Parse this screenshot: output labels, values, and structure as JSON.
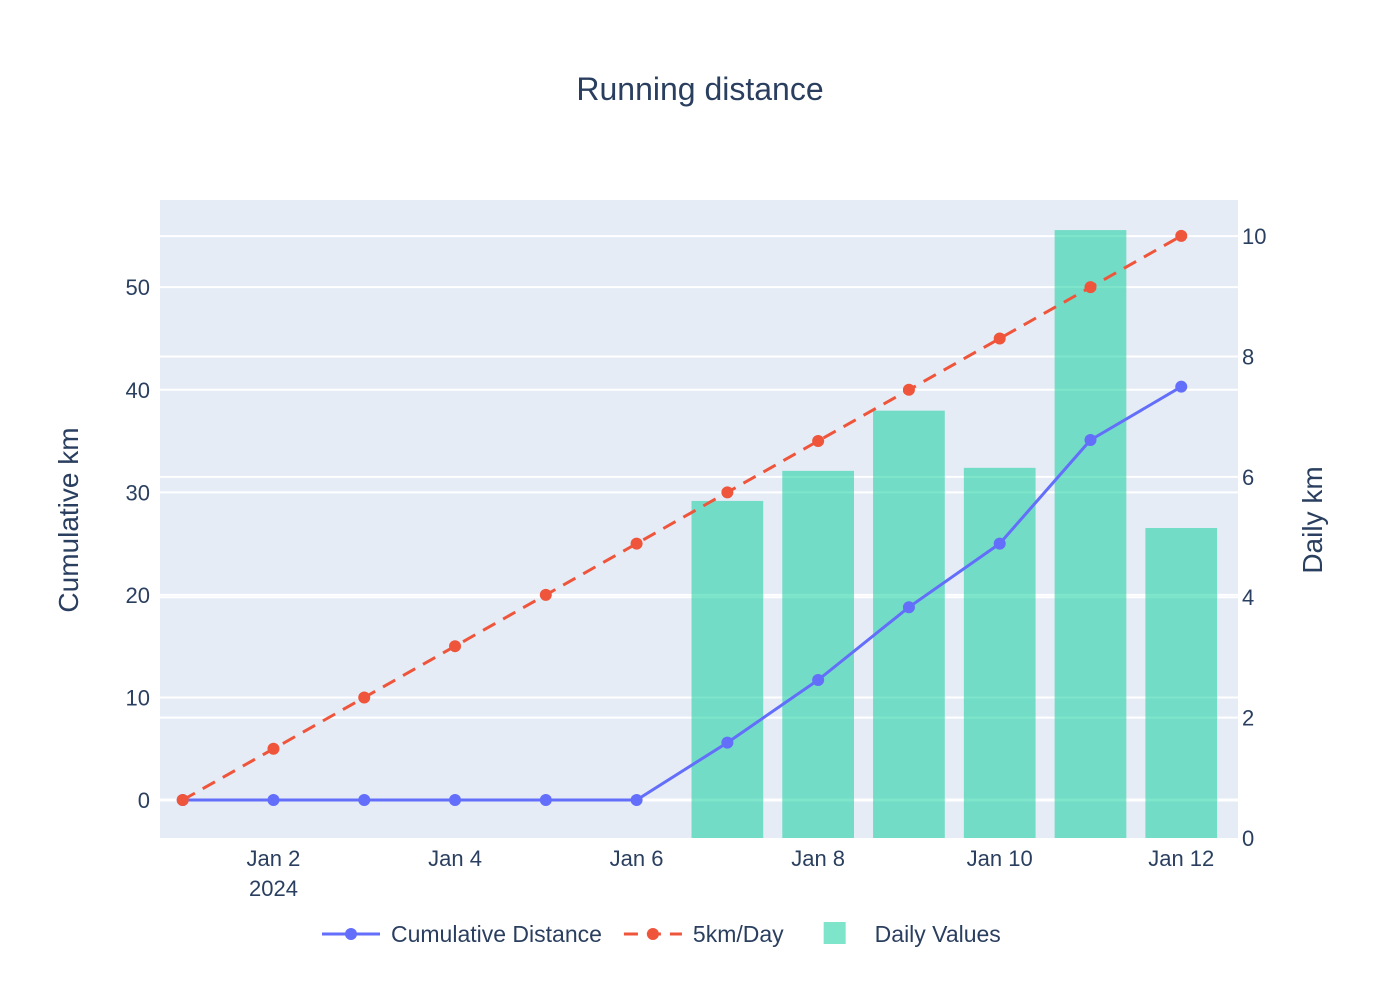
{
  "chart_data": {
    "type": "line",
    "title": "Running distance",
    "x": [
      "2024-01-01",
      "2024-01-02",
      "2024-01-03",
      "2024-01-04",
      "2024-01-05",
      "2024-01-06",
      "2024-01-07",
      "2024-01-08",
      "2024-01-09",
      "2024-01-10",
      "2024-01-11",
      "2024-01-12"
    ],
    "x_tick_labels": [
      {
        "date": "2024-01-02",
        "label": "Jan 2",
        "sublabel": "2024"
      },
      {
        "date": "2024-01-04",
        "label": "Jan 4",
        "sublabel": ""
      },
      {
        "date": "2024-01-06",
        "label": "Jan 6",
        "sublabel": ""
      },
      {
        "date": "2024-01-08",
        "label": "Jan 8",
        "sublabel": ""
      },
      {
        "date": "2024-01-10",
        "label": "Jan 10",
        "sublabel": ""
      },
      {
        "date": "2024-01-12",
        "label": "Jan 12",
        "sublabel": ""
      }
    ],
    "xlim": [
      "2023-12-31T18:00",
      "2024-01-12T15:00"
    ],
    "y_left": {
      "label": "Cumulative km",
      "ylim": [
        -3.7,
        58.5
      ],
      "ticks": [
        0,
        10,
        20,
        30,
        40,
        50
      ]
    },
    "y_right": {
      "label": "Daily km",
      "ylim": [
        0,
        10.6
      ],
      "ticks": [
        0,
        2,
        4,
        6,
        8,
        10
      ]
    },
    "series": [
      {
        "name": "Cumulative Distance",
        "type": "line",
        "axis": "left",
        "color": "#636efa",
        "dash": "solid",
        "values": [
          0,
          0,
          0,
          0,
          0,
          0,
          5.6,
          11.7,
          18.8,
          25.0,
          35.1,
          40.3
        ]
      },
      {
        "name": "5km/Day",
        "type": "line",
        "axis": "left",
        "color": "#ef553b",
        "dash": "dash",
        "values": [
          0,
          5,
          10,
          15,
          20,
          25,
          30,
          35,
          40,
          45,
          50,
          55
        ]
      },
      {
        "name": "Daily Values",
        "type": "bar",
        "axis": "right",
        "color": "#00cc96",
        "opacity": 0.5,
        "values": [
          0,
          0,
          0,
          0,
          0,
          0,
          5.6,
          6.1,
          7.1,
          6.15,
          10.1,
          5.15
        ]
      }
    ],
    "grid": true,
    "legend": "bottom-center",
    "plot_bg": "#e5ecf6"
  }
}
